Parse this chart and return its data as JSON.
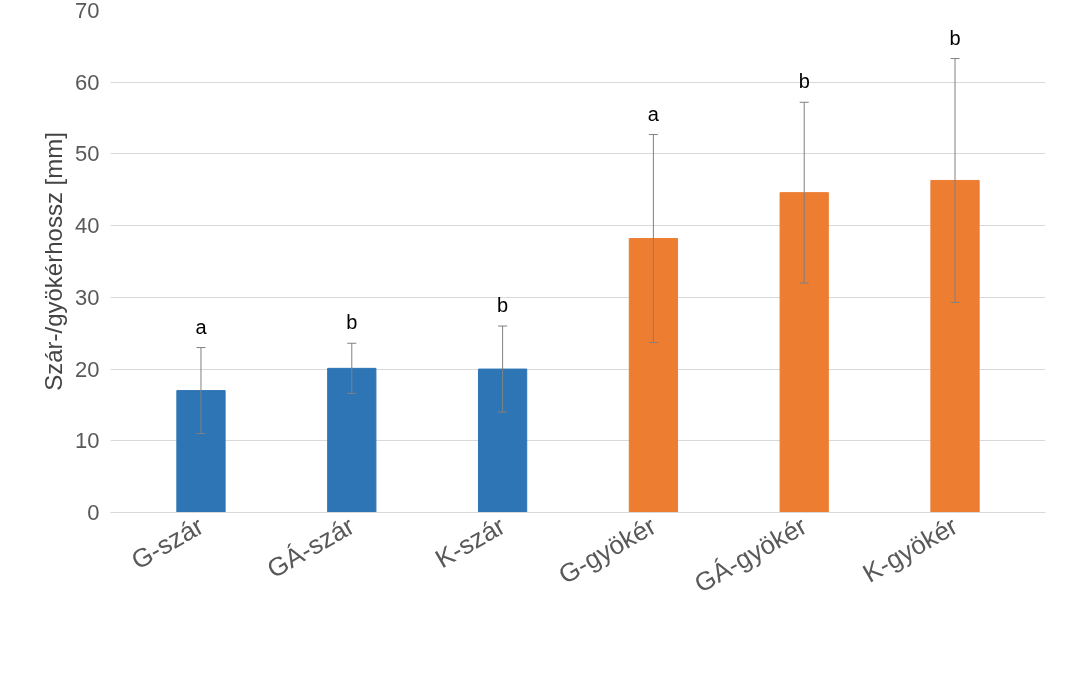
{
  "chart_data": {
    "type": "bar",
    "ylabel": "Szár-/gyökérhossz [mm]",
    "categories": [
      "G-szár",
      "GÁ-szár",
      "K-szár",
      "G-gyökér",
      "GÁ-gyökér",
      "K-gyökér"
    ],
    "values": [
      17,
      20.1,
      20,
      38.2,
      44.6,
      46.3
    ],
    "colors": [
      "#2e75b6",
      "#2e75b6",
      "#2e75b6",
      "#ed7d31",
      "#ed7d31",
      "#ed7d31"
    ],
    "errors": [
      6,
      3.5,
      6,
      14.5,
      12.6,
      17
    ],
    "ylim": [
      0,
      70
    ],
    "yticks": [
      0,
      10,
      20,
      30,
      40,
      50,
      60,
      70
    ],
    "grid": "y",
    "annotations": [
      "a",
      "b",
      "b",
      "a",
      "b",
      "b"
    ]
  }
}
